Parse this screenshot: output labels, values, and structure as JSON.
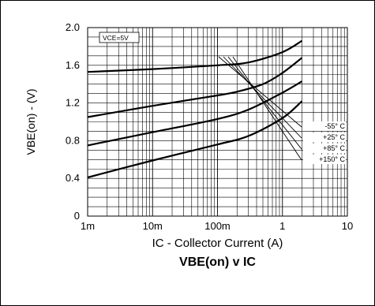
{
  "chart_data": {
    "type": "line",
    "xscale": "log",
    "xlim": [
      0.001,
      10
    ],
    "ylim": [
      0,
      2.0
    ],
    "x_ticks": [
      {
        "value": 0.001,
        "label": "1m"
      },
      {
        "value": 0.01,
        "label": "10m"
      },
      {
        "value": 0.1,
        "label": "100m"
      },
      {
        "value": 1,
        "label": "1"
      },
      {
        "value": 10,
        "label": "10"
      }
    ],
    "y_ticks": [
      {
        "value": 0,
        "label": "0"
      },
      {
        "value": 0.4,
        "label": "0.4"
      },
      {
        "value": 0.8,
        "label": "0.8"
      },
      {
        "value": 1.2,
        "label": "1.2"
      },
      {
        "value": 1.6,
        "label": "1.6"
      },
      {
        "value": 2.0,
        "label": "2.0"
      }
    ],
    "xlabel": "IC - Collector Current (A)",
    "ylabel": "VBE(on) - (V)",
    "title": "VBE(on) v IC",
    "annotation": "VCE=5V",
    "grid": true,
    "legend_position": "right",
    "series": [
      {
        "name": "-55° C",
        "x": [
          0.001,
          0.01,
          0.1,
          0.3,
          1,
          2
        ],
        "y": [
          1.53,
          1.56,
          1.6,
          1.63,
          1.74,
          1.86
        ]
      },
      {
        "name": "+25° C",
        "x": [
          0.001,
          0.01,
          0.1,
          0.2,
          0.5,
          1,
          2
        ],
        "y": [
          1.05,
          1.17,
          1.28,
          1.32,
          1.4,
          1.52,
          1.68
        ]
      },
      {
        "name": "+85° C",
        "x": [
          0.001,
          0.01,
          0.1,
          0.3,
          1,
          2
        ],
        "y": [
          0.75,
          0.89,
          1.03,
          1.13,
          1.31,
          1.43
        ]
      },
      {
        "name": "+150° C",
        "x": [
          0.001,
          0.01,
          0.1,
          0.3,
          1,
          2
        ],
        "y": [
          0.41,
          0.59,
          0.76,
          0.85,
          1.04,
          1.22
        ]
      }
    ]
  }
}
